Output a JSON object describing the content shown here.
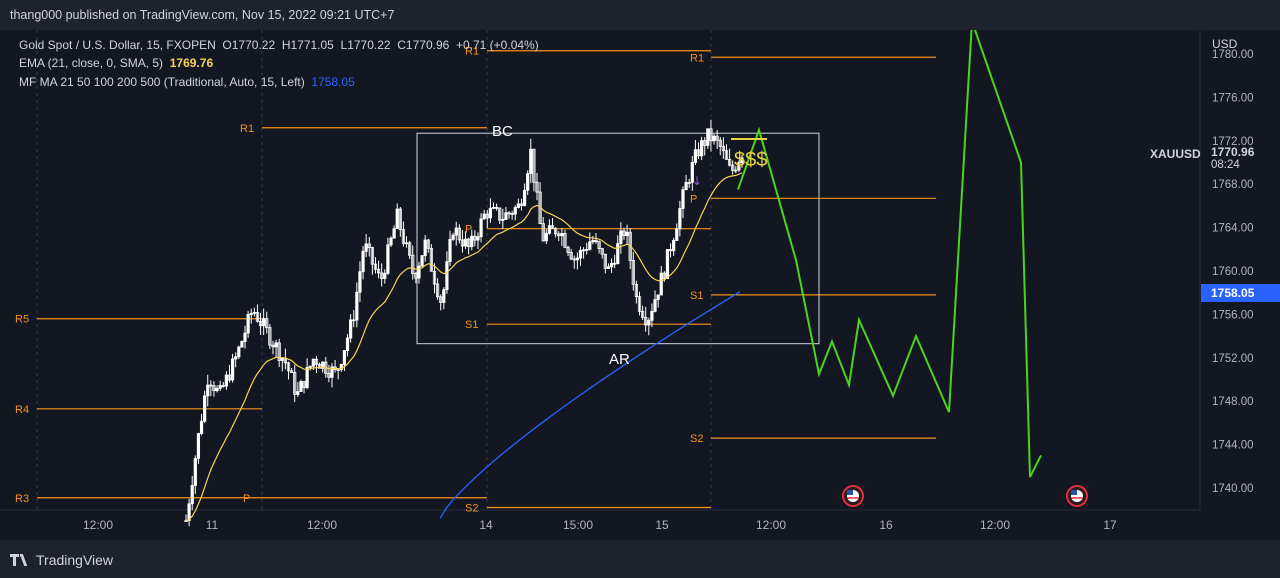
{
  "header": {
    "publisher": "thang000 published on TradingView.com, Nov 15, 2022 09:21 UTC+7"
  },
  "legend": {
    "symbol_line": {
      "name": "Gold Spot / U.S. Dollar, 15, FXOPEN",
      "open": "O1770.22",
      "high": "H1771.05",
      "low": "L1770.22",
      "close": "C1770.96",
      "change": "+0.71 (+0.04%)"
    },
    "ema_line": {
      "label": "EMA (21, close, 0, SMA, 5)",
      "value": "1769.76"
    },
    "mf_line": {
      "label": "MF MA 21 50 100 200 500 (Traditional, Auto, 15, Left)",
      "value": "1758.05"
    }
  },
  "price_axis": {
    "currency": "USD",
    "symbol": "XAUUSD",
    "last_price": "1770.96",
    "countdown": "08:24",
    "ma_price": "1758.05"
  },
  "footer": {
    "brand": "TradingView"
  },
  "colors": {
    "background": "#131722",
    "candle": "#ffffff",
    "pivot_line": "#f7931a",
    "ema": "#f5d454",
    "ma": "#2962ff",
    "projection": "#4cd41b",
    "box": "#d1d4dc"
  },
  "chart_data": {
    "type": "candlestick",
    "symbol": "XAUUSD",
    "timeframe": "15",
    "y_range": [
      1737,
      1783
    ],
    "x_ticks": [
      "12:00",
      "11",
      "12:00",
      "14",
      "15:00",
      "15",
      "12:00",
      "16",
      "12:00",
      "17"
    ],
    "y_ticks": [
      1740,
      1744,
      1748,
      1752,
      1756,
      1760,
      1764,
      1768,
      1772,
      1776,
      1780
    ],
    "y_tick_labels": [
      "1740.00",
      "1744.00",
      "1748.00",
      "1752.00",
      "1756.00",
      "1760.00",
      "1764.00",
      "1768.00",
      "1772.00",
      "1776.00",
      "1780.00"
    ],
    "price_path": [
      {
        "t": 0.0,
        "p": 1737.0
      },
      {
        "t": 0.02,
        "p": 1744.0
      },
      {
        "t": 0.04,
        "p": 1750.5
      },
      {
        "t": 0.06,
        "p": 1748.5
      },
      {
        "t": 0.09,
        "p": 1752.0
      },
      {
        "t": 0.12,
        "p": 1756.5
      },
      {
        "t": 0.15,
        "p": 1754.0
      },
      {
        "t": 0.18,
        "p": 1751.5
      },
      {
        "t": 0.2,
        "p": 1748.5
      },
      {
        "t": 0.23,
        "p": 1752.0
      },
      {
        "t": 0.27,
        "p": 1750.5
      },
      {
        "t": 0.3,
        "p": 1755.5
      },
      {
        "t": 0.32,
        "p": 1762.5
      },
      {
        "t": 0.35,
        "p": 1759.0
      },
      {
        "t": 0.38,
        "p": 1765.0
      },
      {
        "t": 0.41,
        "p": 1759.5
      },
      {
        "t": 0.43,
        "p": 1762.5
      },
      {
        "t": 0.46,
        "p": 1757.0
      },
      {
        "t": 0.48,
        "p": 1764.0
      },
      {
        "t": 0.51,
        "p": 1762.0
      },
      {
        "t": 0.54,
        "p": 1765.5
      },
      {
        "t": 0.57,
        "p": 1765.0
      },
      {
        "t": 0.6,
        "p": 1766.0
      },
      {
        "t": 0.62,
        "p": 1771.0
      },
      {
        "t": 0.64,
        "p": 1763.0
      },
      {
        "t": 0.67,
        "p": 1764.0
      },
      {
        "t": 0.7,
        "p": 1761.0
      },
      {
        "t": 0.73,
        "p": 1763.0
      },
      {
        "t": 0.76,
        "p": 1760.0
      },
      {
        "t": 0.79,
        "p": 1764.0
      },
      {
        "t": 0.81,
        "p": 1757.5
      },
      {
        "t": 0.83,
        "p": 1755.5
      },
      {
        "t": 0.86,
        "p": 1760.0
      },
      {
        "t": 0.88,
        "p": 1764.0
      },
      {
        "t": 0.9,
        "p": 1768.0
      },
      {
        "t": 0.92,
        "p": 1771.0
      },
      {
        "t": 0.94,
        "p": 1772.5
      },
      {
        "t": 0.96,
        "p": 1771.5
      },
      {
        "t": 0.98,
        "p": 1769.0
      },
      {
        "t": 1.0,
        "p": 1770.96
      }
    ],
    "ema_value": 1769.76,
    "ma_value": 1758.05,
    "pivot_levels": [
      {
        "label": "R1",
        "price": 1773.2,
        "session": "left"
      },
      {
        "label": "R5",
        "price": 1755.6,
        "session": "early"
      },
      {
        "label": "R4",
        "price": 1747.3,
        "session": "early"
      },
      {
        "label": "R3",
        "price": 1739.1,
        "session": "early"
      },
      {
        "label": "P",
        "price": 1739.1,
        "session": "session-11"
      },
      {
        "label": "R1",
        "price": 1780.3,
        "session": "mid"
      },
      {
        "label": "P",
        "price": 1763.9,
        "session": "mid"
      },
      {
        "label": "S1",
        "price": 1755.1,
        "session": "mid"
      },
      {
        "label": "S2",
        "price": 1738.2,
        "session": "mid"
      },
      {
        "label": "R1",
        "price": 1779.7,
        "session": "right"
      },
      {
        "label": "P",
        "price": 1766.7,
        "session": "right"
      },
      {
        "label": "S1",
        "price": 1757.8,
        "session": "right"
      },
      {
        "label": "S2",
        "price": 1744.6,
        "session": "right"
      }
    ],
    "range_box": {
      "top_price": 1772.7,
      "bottom_price": 1753.3
    },
    "annotations": [
      "BC",
      "AR",
      "$$$"
    ],
    "projection_path_prices": [
      1767.5,
      1773.0,
      1761.0,
      1750.5,
      1753.5,
      1749.5,
      1755.5,
      1748.5,
      1754.0,
      1747.0,
      1783.0,
      1770.0,
      1741.0,
      1743.0
    ]
  }
}
